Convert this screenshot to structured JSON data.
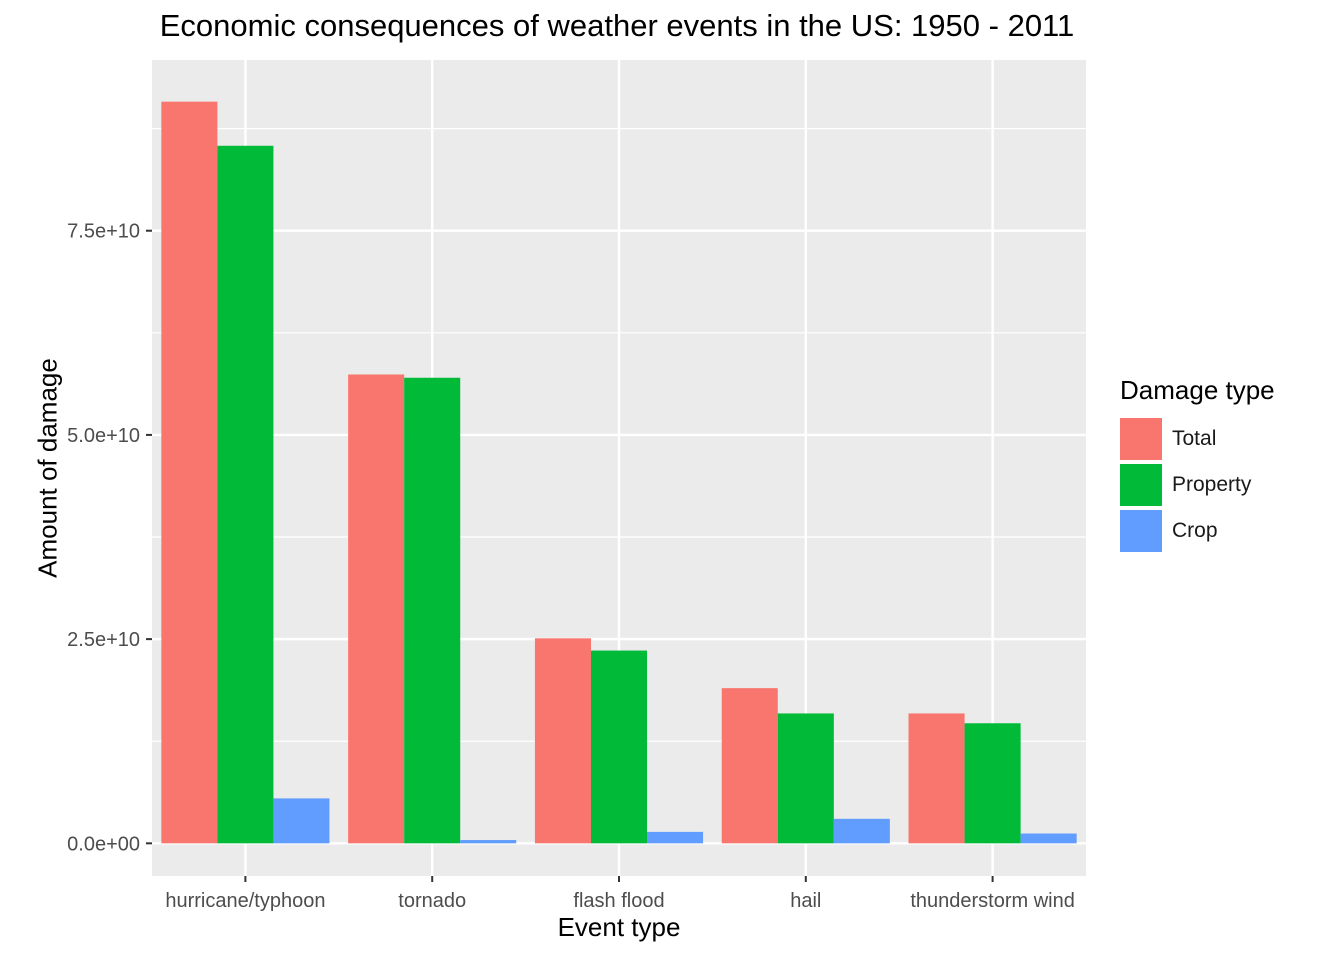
{
  "chart_data": {
    "type": "bar",
    "title": "Economic consequences of weather events in the US: 1950 - 2011",
    "xlabel": "Event type",
    "ylabel": "Amount of damage",
    "categories": [
      "hurricane/typhoon",
      "tornado",
      "flash flood",
      "hail",
      "thunderstorm wind"
    ],
    "series": [
      {
        "name": "Total",
        "color": "#F8766D",
        "values": [
          90800000000,
          57400000000,
          25100000000,
          19000000000,
          15900000000
        ]
      },
      {
        "name": "Property",
        "color": "#00BA38",
        "values": [
          85400000000,
          57000000000,
          23600000000,
          15900000000,
          14700000000
        ]
      },
      {
        "name": "Crop",
        "color": "#619CFF",
        "values": [
          5500000000,
          400000000,
          1400000000,
          3000000000,
          1200000000
        ]
      }
    ],
    "ylim": [
      -4000000000,
      95900000000
    ],
    "yticks": [
      0,
      25000000000,
      50000000000,
      75000000000
    ],
    "ytick_labels": [
      "0.0e+00",
      "2.5e+10",
      "5.0e+10",
      "7.5e+10"
    ],
    "legend": {
      "title": "Damage type",
      "position": "right"
    },
    "grid": true,
    "panel_background": "#EBEBEB"
  }
}
